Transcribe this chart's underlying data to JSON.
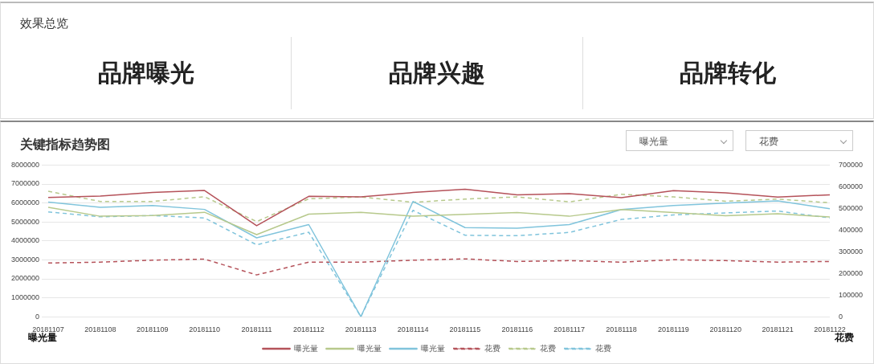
{
  "chart_data": [
    {
      "type": "other",
      "title": "效果总览",
      "annotations": [
        "品牌曝光",
        "品牌兴趣",
        "品牌转化"
      ]
    },
    {
      "type": "line",
      "title": "关键指标趋势图",
      "ylabel": "曝光量",
      "y2label": "花费",
      "annotations": [
        "曝光量",
        "花费"
      ],
      "categories": [
        "20181107",
        "20181108",
        "20181109",
        "20181110",
        "20181111",
        "20181112",
        "20181113",
        "20181114",
        "20181115",
        "20181116",
        "20181117",
        "20181118",
        "20181119",
        "20181120",
        "20181121",
        "20181122"
      ],
      "series": [
        {
          "name": "曝光量",
          "color": "#b5525a",
          "line_style": "solid",
          "values": [
            6290000,
            6360000,
            6550000,
            6660000,
            4800000,
            6350000,
            6320000,
            6550000,
            6720000,
            6430000,
            6490000,
            6280000,
            6650000,
            6530000,
            6310000,
            6430000
          ]
        },
        {
          "name": "曝光量",
          "color": "#b7c98c",
          "line_style": "solid",
          "values": [
            5770000,
            5300000,
            5340000,
            5510000,
            4330000,
            5410000,
            5510000,
            5300000,
            5400000,
            5500000,
            5300000,
            5650000,
            5500000,
            5330000,
            5430000,
            5260000
          ]
        },
        {
          "name": "曝光量",
          "color": "#80c4dc",
          "line_style": "solid",
          "values": [
            6050000,
            5770000,
            5870000,
            5660000,
            4160000,
            4860000,
            0,
            6080000,
            4700000,
            4670000,
            4860000,
            5650000,
            5870000,
            5990000,
            6110000,
            5700000
          ]
        },
        {
          "name": "花费",
          "color": "#b5525a",
          "line_style": "dashed",
          "axis": "y2",
          "values": [
            248000,
            252000,
            261000,
            266000,
            193000,
            252000,
            252000,
            261000,
            267000,
            255000,
            259000,
            252000,
            263000,
            259000,
            252000,
            255000
          ]
        },
        {
          "name": "花费",
          "color": "#b7c98c",
          "line_style": "dashed",
          "axis": "y2",
          "values": [
            579000,
            532000,
            532000,
            554000,
            439000,
            544000,
            553000,
            528000,
            543000,
            553000,
            530000,
            565000,
            553000,
            533000,
            543000,
            526000
          ]
        },
        {
          "name": "花费",
          "color": "#80c4dc",
          "line_style": "dashed",
          "axis": "y2",
          "values": [
            484000,
            461000,
            467000,
            456000,
            332000,
            390000,
            0,
            491000,
            376000,
            374000,
            389000,
            449000,
            470000,
            479000,
            488000,
            456000
          ]
        }
      ],
      "ylim": [
        0,
        8000000
      ],
      "yticks": [
        0,
        1000000,
        2000000,
        3000000,
        4000000,
        5000000,
        6000000,
        7000000,
        8000000
      ],
      "y2lim": [
        0,
        700000
      ],
      "y2ticks": [
        0,
        100000,
        200000,
        300000,
        400000,
        500000,
        600000,
        700000
      ],
      "grid": "y",
      "legend": "bottom",
      "marker": "none"
    }
  ]
}
